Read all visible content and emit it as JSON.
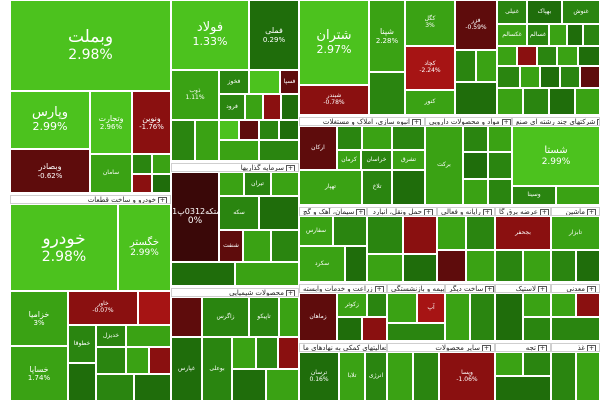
{
  "tiles": [
    {
      "name": "tile-vbmellat",
      "label": "وبملت",
      "pct": "2.98%",
      "cls": "g1",
      "fs": "xl"
    },
    {
      "name": "tile-vpars",
      "label": "وپارس",
      "pct": "2.99%",
      "cls": "g1",
      "fs": "l"
    },
    {
      "name": "tile-vtejarat",
      "label": "وتجارت",
      "pct": "2.96%",
      "cls": "g1",
      "fs": "s"
    },
    {
      "name": "tile-vnovin",
      "label": "ونوین",
      "pct": "-1.76%",
      "cls": "r1",
      "fs": "s"
    },
    {
      "name": "tile-vbsader",
      "label": "وبصادر",
      "pct": "-0.62%",
      "cls": "r2",
      "fs": "s"
    },
    {
      "name": "tile-saman",
      "label": "سامان",
      "pct": "",
      "cls": "g2",
      "fs": "xs"
    },
    {
      "name": "tile-khodro",
      "label": "خودرو",
      "pct": "2.98%",
      "cls": "g1",
      "fs": "xl"
    },
    {
      "name": "tile-khgostar",
      "label": "خگستر",
      "pct": "2.99%",
      "cls": "g1",
      "fs": "m"
    },
    {
      "name": "tile-khzamia",
      "label": "خزامیا",
      "pct": "3%",
      "cls": "g2",
      "fs": "s"
    },
    {
      "name": "tile-khsapa",
      "label": "خساپا",
      "pct": "1.74%",
      "cls": "g2",
      "fs": "s"
    },
    {
      "name": "tile-khavar",
      "label": "خاور",
      "pct": "-0.07%",
      "cls": "r1",
      "fs": "xs"
    },
    {
      "name": "tile-khtoqa",
      "label": "خطوقا",
      "pct": "",
      "cls": "g3",
      "fs": "xs"
    },
    {
      "name": "tile-khdizel",
      "label": "خدیزل",
      "pct": "",
      "cls": "g3",
      "fs": "xs"
    },
    {
      "name": "tile-folad",
      "label": "فولاد",
      "pct": "1.33%",
      "cls": "g1",
      "fs": "l"
    },
    {
      "name": "tile-foli",
      "label": "فملی",
      "pct": "0.29%",
      "cls": "g4",
      "fs": "s"
    },
    {
      "name": "tile-zob",
      "label": "ذوب",
      "pct": "1.11%",
      "cls": "g2",
      "fs": "xs"
    },
    {
      "name": "tile-fkhuz",
      "label": "فخوز",
      "pct": "",
      "cls": "g3",
      "fs": "xs"
    },
    {
      "name": "tile-fsepa",
      "label": "فسپا",
      "pct": "",
      "cls": "r2",
      "fs": "xs"
    },
    {
      "name": "tile-foroud",
      "label": "فرود",
      "pct": "",
      "cls": "g3",
      "fs": "xs"
    },
    {
      "name": "tile-shetran",
      "label": "شتران",
      "pct": "2.97%",
      "cls": "g1",
      "fs": "l"
    },
    {
      "name": "tile-shpna",
      "label": "شپنا",
      "pct": "2.28%",
      "cls": "g2",
      "fs": "s"
    },
    {
      "name": "tile-shbandar",
      "label": "شبندر",
      "pct": "-0.78%",
      "cls": "r1",
      "fs": "xs"
    },
    {
      "name": "tile-kegol",
      "label": "کگل",
      "pct": "3%",
      "cls": "g2",
      "fs": "xs"
    },
    {
      "name": "tile-kchad",
      "label": "کچاد",
      "pct": "-2.24%",
      "cls": "r3",
      "fs": "xs"
    },
    {
      "name": "tile-knour",
      "label": "کنور",
      "pct": "",
      "cls": "g2",
      "fs": "xs"
    },
    {
      "name": "tile-fazar",
      "label": "فزر",
      "pct": "-0.59%",
      "cls": "r2",
      "fs": "xs"
    },
    {
      "name": "tile-ghadir",
      "label": "غدیر",
      "pct": "",
      "cls": "g4",
      "fs": "xs"
    },
    {
      "name": "tile-vghadir",
      "label": "وغدیر",
      "pct": "",
      "cls": "g3",
      "fs": "xs"
    },
    {
      "name": "tile-shastan",
      "label": "شستا",
      "pct": "2.99%",
      "cls": "g1",
      "fs": "l"
    },
    {
      "name": "tile-vsina",
      "label": "وسینا",
      "pct": "",
      "cls": "g3",
      "fs": "xs"
    },
    {
      "name": "tile-hsheet",
      "label": "ستکه0312پ01",
      "pct": "0%",
      "cls": "r4",
      "fs": "m"
    },
    {
      "name": "tile-setran",
      "label": "تیران",
      "pct": "",
      "cls": "g3",
      "fs": "xs"
    },
    {
      "name": "tile-sekeh",
      "label": "سکه",
      "pct": "",
      "cls": "g3",
      "fs": "xs"
    },
    {
      "name": "tile-shenzan",
      "label": "شنفت",
      "pct": "",
      "cls": "r2",
      "fs": "xs"
    },
    {
      "name": "tile-zagros",
      "label": "زاگرس",
      "pct": "",
      "cls": "g3",
      "fs": "xs"
    },
    {
      "name": "tile-tipiko",
      "label": "تاپیکو",
      "pct": "",
      "cls": "g3",
      "fs": "xs"
    },
    {
      "name": "tile-booali",
      "label": "بوعلی",
      "pct": "",
      "cls": "g3",
      "fs": "xs"
    },
    {
      "name": "tile-ghpars",
      "label": "غپارس",
      "pct": "",
      "cls": "g4",
      "fs": "xs"
    },
    {
      "name": "tile-zmahan",
      "label": "زماهان",
      "pct": "",
      "cls": "r2",
      "fs": "xs"
    },
    {
      "name": "tile-zkoshat",
      "label": "زکوثر",
      "pct": "",
      "cls": "g2",
      "fs": "xs"
    },
    {
      "name": "tile-trasan",
      "label": "ترسان",
      "pct": "0.16%",
      "cls": "g4",
      "fs": "xs"
    },
    {
      "name": "tile-apadana",
      "label": "آپ",
      "pct": "",
      "cls": "r3",
      "fs": "xs"
    },
    {
      "name": "tile-tlaba",
      "label": "تلابا",
      "pct": "",
      "cls": "g2",
      "fs": "xs"
    },
    {
      "name": "tile-anzali",
      "label": "انرژی",
      "pct": "",
      "cls": "g3",
      "fs": "xs"
    },
    {
      "name": "tile-vpsan",
      "label": "وپسا",
      "pct": "-1.06%",
      "cls": "r1",
      "fs": "xs"
    },
    {
      "name": "tile-sfars",
      "label": "سفارس",
      "pct": "",
      "cls": "g2",
      "fs": "xs"
    },
    {
      "name": "tile-skord",
      "label": "سکرد",
      "pct": "",
      "cls": "g2",
      "fs": "xs"
    },
    {
      "name": "tile-rkaran",
      "label": "ارکان",
      "pct": "",
      "cls": "g3",
      "fs": "xs"
    },
    {
      "name": "tile-vbajar",
      "label": "بجحفر",
      "pct": "",
      "cls": "r1",
      "fs": "xs"
    },
    {
      "name": "tile-tabzar",
      "label": "تابزار",
      "pct": "",
      "cls": "g2",
      "fs": "xs"
    },
    {
      "name": "tile-beraka",
      "label": "برکت",
      "pct": "",
      "cls": "g2",
      "fs": "xs"
    },
    {
      "name": "tile-tshahr",
      "label": "تهپار",
      "pct": "",
      "cls": "g2",
      "fs": "xs"
    },
    {
      "name": "tile-tlakh",
      "label": "تلاخ",
      "pct": "",
      "cls": "g3",
      "fs": "xs"
    },
    {
      "name": "tile-dsharq",
      "label": "تشرق",
      "pct": "",
      "cls": "g2",
      "fs": "xs"
    },
    {
      "name": "tile-krman",
      "label": "کرمان",
      "pct": "",
      "cls": "g3",
      "fs": "xs"
    },
    {
      "name": "tile-khras",
      "label": "خراسان",
      "pct": "",
      "cls": "g3",
      "fs": "xs"
    },
    {
      "name": "tile-hegh",
      "label": "هجینی",
      "pct": "",
      "cls": "g3",
      "fs": "xs"
    },
    {
      "name": "tile-vbahman",
      "label": "وبهمن",
      "pct": "",
      "cls": "g2",
      "fs": "xs"
    },
    {
      "name": "tile-vpaid",
      "label": "وپاید",
      "pct": "",
      "cls": "g4",
      "fs": "xs"
    },
    {
      "name": "tile-gonous",
      "label": "غنوش",
      "pct": "",
      "cls": "g3",
      "fs": "xs"
    },
    {
      "name": "tile-gbehnoush",
      "label": "بهپاک",
      "pct": "",
      "cls": "g3",
      "fs": "xs"
    },
    {
      "name": "tile-gnili",
      "label": "غنیلی",
      "pct": "",
      "cls": "g2",
      "fs": "xs"
    },
    {
      "name": "tile-gsalam",
      "label": "غکسالم",
      "pct": "",
      "cls": "g2",
      "fs": "xs"
    },
    {
      "name": "tile-gsalan",
      "label": "غسالم",
      "pct": "",
      "cls": "g3",
      "fs": "xs"
    },
    {
      "name": "tile-gkourosh",
      "label": "گکل",
      "pct": "",
      "cls": "g3",
      "fs": "xs"
    },
    {
      "name": "tile-ganour",
      "label": "غزر",
      "pct": "",
      "cls": "g3",
      "fs": "xs"
    },
    {
      "name": "tile-nouri",
      "label": "بترور",
      "pct": "",
      "cls": "g3",
      "fs": "xs"
    },
    {
      "name": "tile-fmoas",
      "label": "گذارن",
      "pct": "",
      "cls": "g3",
      "fs": "xs"
    },
    {
      "name": "tile-smazna",
      "label": "مزنا",
      "pct": "",
      "cls": "g3",
      "fs": "xs"
    }
  ],
  "groups": [
    {
      "name": "group-header-khodro",
      "label": "خودرو و ساخت قطعات"
    },
    {
      "name": "group-header-maliyeh",
      "label": "سرمایه گذاریها"
    },
    {
      "name": "group-header-shimiyaei",
      "label": "محصولات شیمیایی"
    },
    {
      "name": "group-header-abniyeh",
      "label": "انبوه سازی، املاک و مستغلات"
    },
    {
      "name": "group-header-daroei",
      "label": "مواد و محصولات دارویی"
    },
    {
      "name": "group-header-chand",
      "label": "شرکتهای چند رشته ای صنع"
    },
    {
      "name": "group-header-siman",
      "label": "سیمان، آهک و گچ"
    },
    {
      "name": "group-header-haml",
      "label": "حمل ونقل، انبارد"
    },
    {
      "name": "group-header-rayaneh",
      "label": "رایانه و فعالی"
    },
    {
      "name": "group-header-arzesh",
      "label": "عرضه برق گا"
    },
    {
      "name": "group-header-mashin",
      "label": "ماشین"
    },
    {
      "name": "group-header-zeraat",
      "label": "زراعت و خدمات وابسته"
    },
    {
      "name": "group-header-bimeh",
      "label": "بیمه و بازنشستگی"
    },
    {
      "name": "group-header-sakhtemani",
      "label": "ساخت دیگر"
    },
    {
      "name": "group-header-lastic",
      "label": "لاستیک"
    },
    {
      "name": "group-header-sayer",
      "label": "سایر محصولات"
    },
    {
      "name": "group-header-fani",
      "label": "فعالیتهای کمکی به نهادهای ما"
    },
    {
      "name": "group-header-tjh",
      "label": "تجه"
    },
    {
      "name": "group-header-ghaza",
      "label": "غذ"
    },
    {
      "name": "group-header-madeni",
      "label": "معدنی"
    }
  ]
}
